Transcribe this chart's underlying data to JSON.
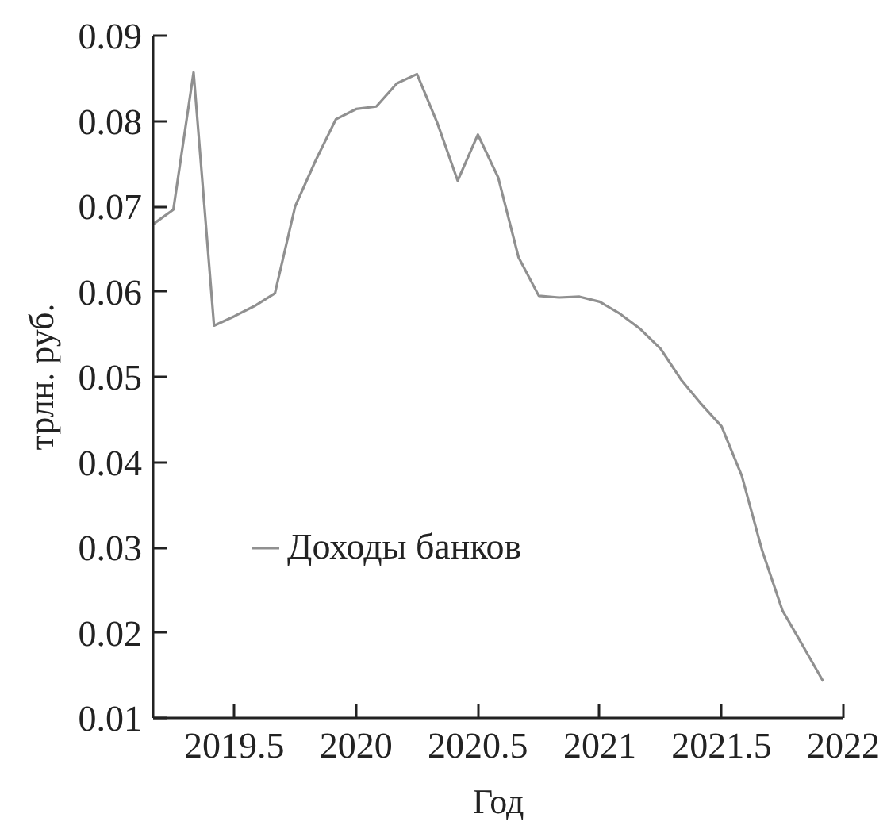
{
  "chart_data": {
    "type": "line",
    "xlabel": "Год",
    "ylabel": "трлн. руб.",
    "x": [
      2019.167,
      2019.25,
      2019.333,
      2019.417,
      2019.5,
      2019.583,
      2019.667,
      2019.75,
      2019.833,
      2019.917,
      2020.0,
      2020.083,
      2020.167,
      2020.25,
      2020.333,
      2020.417,
      2020.5,
      2020.583,
      2020.667,
      2020.75,
      2020.833,
      2020.917,
      2021.0,
      2021.083,
      2021.167,
      2021.25,
      2021.333,
      2021.417,
      2021.5,
      2021.583,
      2021.667,
      2021.75,
      2021.833,
      2021.917
    ],
    "series": [
      {
        "name": "Доходы банков",
        "color": "#909090",
        "values": [
          0.0679,
          0.0696,
          0.0857,
          0.056,
          0.0571,
          0.0583,
          0.0598,
          0.07,
          0.0753,
          0.0802,
          0.0814,
          0.0817,
          0.0844,
          0.0855,
          0.0798,
          0.073,
          0.0784,
          0.0734,
          0.064,
          0.0595,
          0.0593,
          0.0594,
          0.0588,
          0.0574,
          0.0556,
          0.0533,
          0.0497,
          0.0468,
          0.0442,
          0.0384,
          0.0296,
          0.0226,
          0.0185,
          0.0143
        ]
      }
    ],
    "xlim": [
      2019.167,
      2022
    ],
    "ylim": [
      0.01,
      0.09
    ],
    "xticks": [
      2019.5,
      2020,
      2020.5,
      2021,
      2021.5,
      2022
    ],
    "yticks": [
      0.01,
      0.02,
      0.03,
      0.04,
      0.05,
      0.06,
      0.07,
      0.08,
      0.09
    ],
    "legend": "left"
  }
}
